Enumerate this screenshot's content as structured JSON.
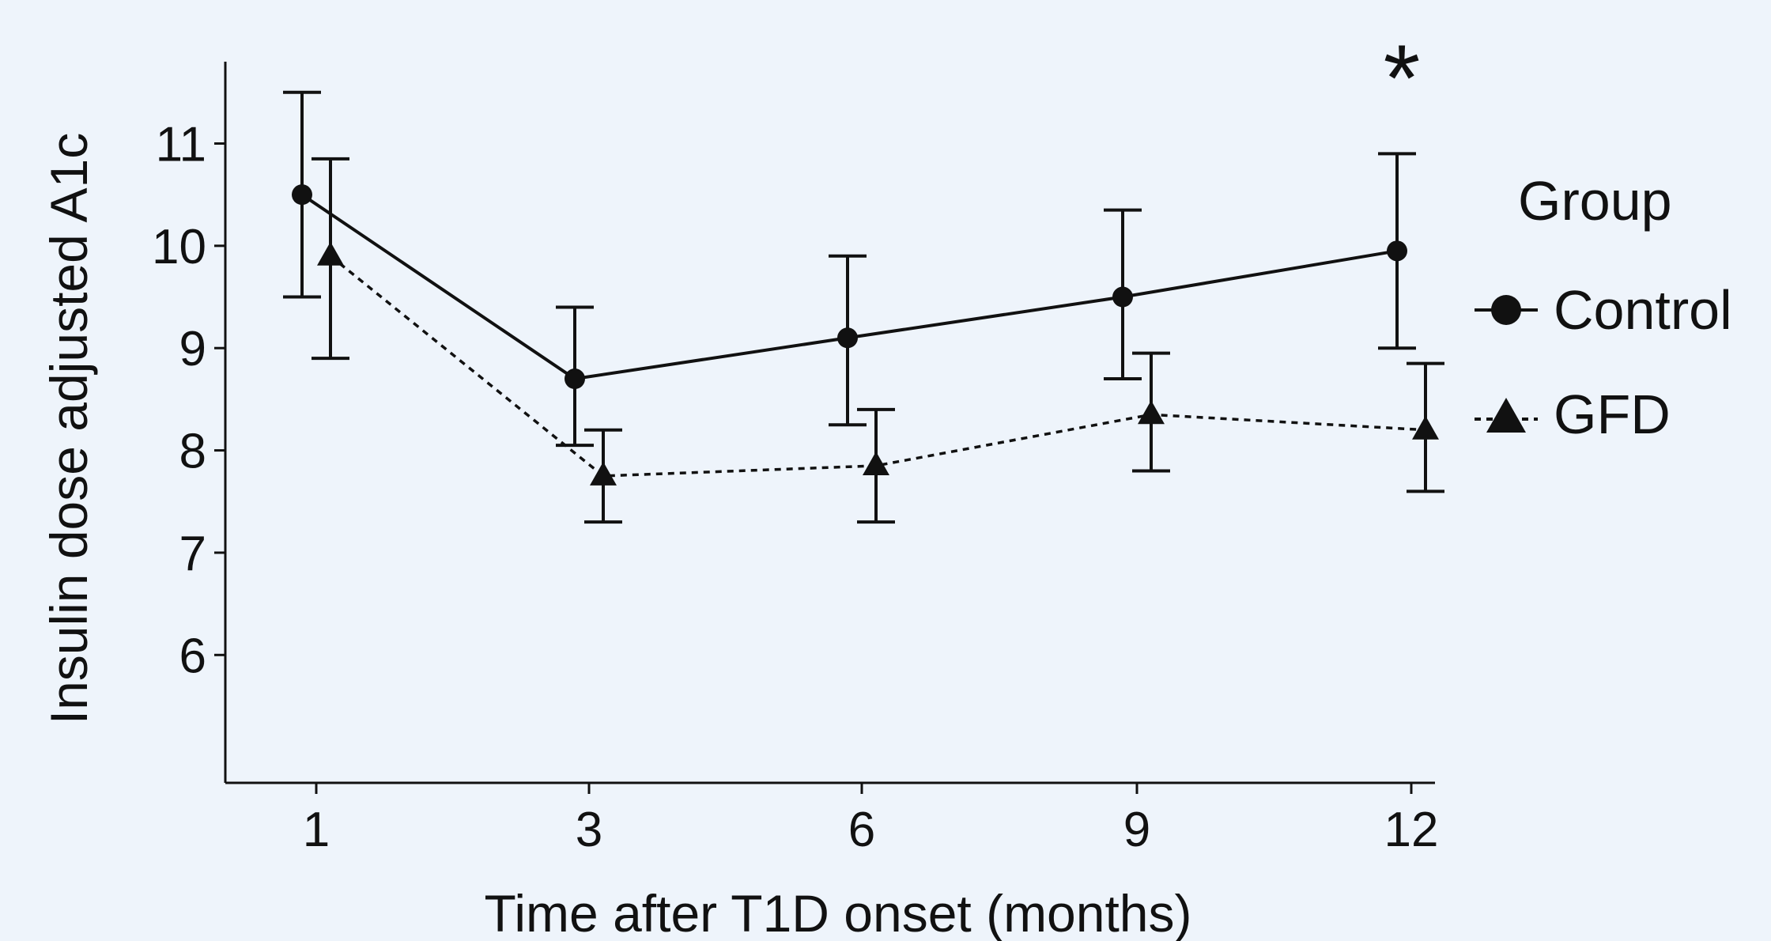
{
  "chart_data": {
    "type": "line",
    "xlabel": "Time after T1D onset (months)",
    "ylabel": "Insulin dose adjusted A1c",
    "x": [
      1,
      3,
      6,
      9,
      12
    ],
    "x_tick_labels": [
      "1",
      "3",
      "6",
      "9",
      "12"
    ],
    "y_tick_labels": [
      "6",
      "7",
      "8",
      "9",
      "10",
      "11"
    ],
    "y_ticks": [
      6,
      7,
      8,
      9,
      10,
      11
    ],
    "ylim": [
      4.75,
      11.8
    ],
    "grid": false,
    "legend": {
      "title": "Group",
      "placement": "right"
    },
    "series": [
      {
        "name": "Control",
        "marker": "circle",
        "line_style": "solid",
        "values": [
          10.5,
          8.7,
          9.1,
          9.5,
          9.95
        ],
        "err_low": [
          9.5,
          8.05,
          8.25,
          8.7,
          9.0
        ],
        "err_high": [
          11.5,
          9.4,
          9.9,
          10.35,
          10.9
        ]
      },
      {
        "name": "GFD",
        "marker": "triangle",
        "line_style": "dashed",
        "values": [
          9.9,
          7.75,
          7.85,
          8.35,
          8.2
        ],
        "err_low": [
          8.9,
          7.3,
          7.3,
          7.8,
          7.6
        ],
        "err_high": [
          10.85,
          8.2,
          8.4,
          8.95,
          8.85
        ]
      }
    ],
    "annotations": [
      {
        "text": "*",
        "x": 12,
        "y": 11.65
      }
    ]
  }
}
